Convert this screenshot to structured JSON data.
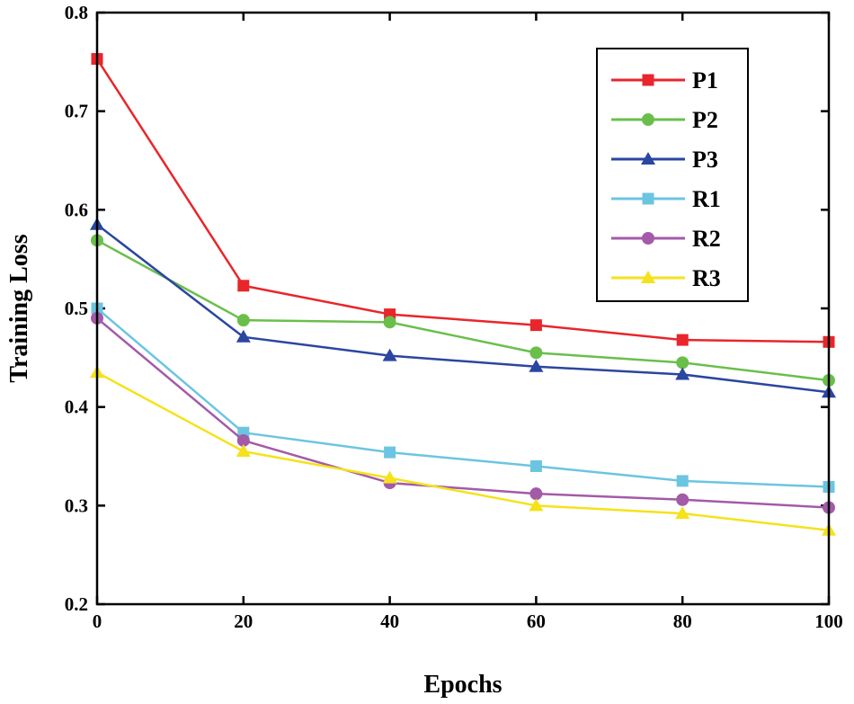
{
  "chart_data": {
    "type": "line",
    "title": "",
    "xlabel": "Epochs",
    "ylabel": "Training Loss",
    "xlim": [
      0,
      100
    ],
    "ylim": [
      0.2,
      0.8
    ],
    "xticks": [
      0,
      20,
      40,
      60,
      80,
      100
    ],
    "xtick_labels": [
      "0",
      "20",
      "40",
      "60",
      "80",
      "100"
    ],
    "yticks": [
      0.2,
      0.3,
      0.4,
      0.5,
      0.6,
      0.7,
      0.8
    ],
    "ytick_labels": [
      "0.2",
      "0.3",
      "0.4",
      "0.5",
      "0.6",
      "0.7",
      "0.8"
    ],
    "grid": false,
    "legend_position": "top-right",
    "x": [
      0,
      20,
      40,
      60,
      80,
      100
    ],
    "series": [
      {
        "name": "P1",
        "color": "#e8262b",
        "marker": "square",
        "values": [
          0.753,
          0.523,
          0.494,
          0.483,
          0.468,
          0.466
        ]
      },
      {
        "name": "P2",
        "color": "#6abf4b",
        "marker": "circle",
        "values": [
          0.569,
          0.488,
          0.486,
          0.455,
          0.445,
          0.427
        ]
      },
      {
        "name": "P3",
        "color": "#2b46a0",
        "marker": "triangle",
        "values": [
          0.585,
          0.471,
          0.452,
          0.441,
          0.433,
          0.415
        ]
      },
      {
        "name": "R1",
        "color": "#6cc5e0",
        "marker": "square",
        "values": [
          0.5,
          0.374,
          0.354,
          0.34,
          0.325,
          0.319
        ]
      },
      {
        "name": "R2",
        "color": "#a35aa8",
        "marker": "circle",
        "values": [
          0.49,
          0.366,
          0.323,
          0.312,
          0.306,
          0.298
        ]
      },
      {
        "name": "R3",
        "color": "#f5e21a",
        "marker": "triangle",
        "values": [
          0.435,
          0.355,
          0.328,
          0.3,
          0.292,
          0.275
        ]
      }
    ]
  }
}
